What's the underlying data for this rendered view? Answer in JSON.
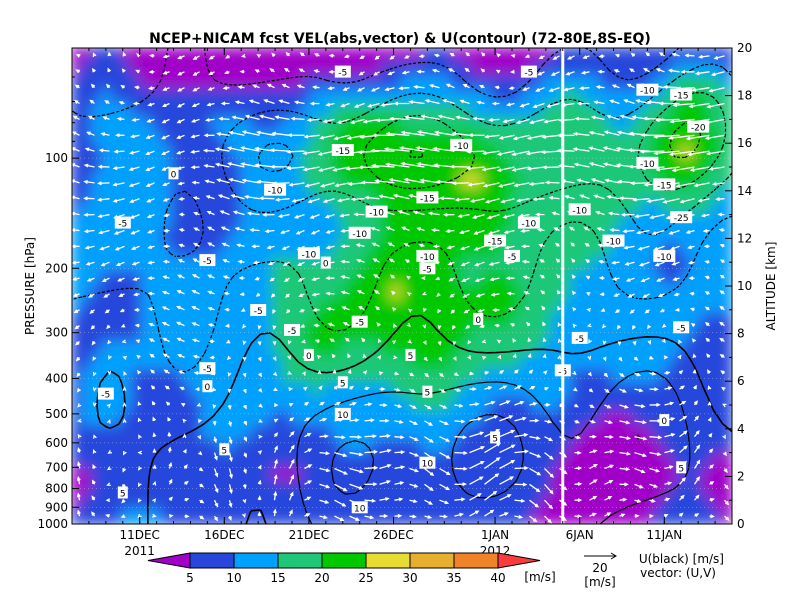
{
  "chart_data": {
    "type": "heatmap",
    "title": "NCEP+NICAM fcst VEL(abs,vector) & U(contour)  (72-80E,8S-EQ)",
    "ylabel_left": "PRESSURE [hPa]",
    "ylabel_right": "ALTITUDE [km]",
    "x_ticks": [
      "11DEC",
      "16DEC",
      "21DEC",
      "26DEC",
      "1JAN",
      "6JAN",
      "11JAN"
    ],
    "x_year_labels": [
      {
        "under": "11DEC",
        "text": "2011"
      },
      {
        "under": "1JAN",
        "text": "2012"
      }
    ],
    "x_range": [
      "2011-12-07",
      "2012-01-15"
    ],
    "forecast_start": "2012-01-05",
    "pressure_ticks": [
      100,
      200,
      300,
      400,
      500,
      600,
      700,
      800,
      900,
      1000
    ],
    "pressure_log_scale": true,
    "pressure_range": [
      1000,
      50
    ],
    "altitude_ticks": [
      0,
      2,
      4,
      6,
      8,
      10,
      12,
      14,
      16,
      18,
      20
    ],
    "colorbar": {
      "levels": [
        5,
        10,
        15,
        20,
        25,
        30,
        35,
        40
      ],
      "colors": [
        "#a000c8",
        "#2846dc",
        "#00a0ff",
        "#1ec878",
        "#00c800",
        "#e6dc32",
        "#e6af2d",
        "#f08228",
        "#fa3c3c",
        "#f00082"
      ],
      "unit": "[m/s]"
    },
    "vector_legend": {
      "value": "20",
      "unit": "[m/s]"
    },
    "legend_note": [
      "U(black) [m/s]",
      "vector: (U,V)"
    ],
    "contour_labels": [
      {
        "text": "-5",
        "date": "2011-12-10",
        "p": 150
      },
      {
        "text": "-5",
        "date": "2011-12-15",
        "p": 190
      },
      {
        "text": "-5",
        "date": "2011-12-18",
        "p": 260
      },
      {
        "text": "-5",
        "date": "2011-12-20",
        "p": 295
      },
      {
        "text": "-5",
        "date": "2011-12-15",
        "p": 375
      },
      {
        "text": "-5",
        "date": "2011-12-09",
        "p": 440
      },
      {
        "text": "-5",
        "date": "2011-12-24",
        "p": 280
      },
      {
        "text": "-5",
        "date": "2011-12-23",
        "p": 58
      },
      {
        "text": "-5",
        "date": "2011-12-30",
        "p": 92
      },
      {
        "text": "-5",
        "date": "2012-01-03",
        "p": 58
      },
      {
        "text": "-10",
        "date": "2011-12-30",
        "p": 92
      },
      {
        "text": "-10",
        "date": "2011-12-19",
        "p": 122
      },
      {
        "text": "-15",
        "date": "2011-12-23",
        "p": 95
      },
      {
        "text": "-10",
        "date": "2011-12-25",
        "p": 140
      },
      {
        "text": "-15",
        "date": "2011-12-28",
        "p": 128
      },
      {
        "text": "-10",
        "date": "2011-12-24",
        "p": 160
      },
      {
        "text": "-10",
        "date": "2011-12-21",
        "p": 182
      },
      {
        "text": "-10",
        "date": "2011-12-28",
        "p": 185
      },
      {
        "text": "-15",
        "date": "2012-01-01",
        "p": 168
      },
      {
        "text": "-10",
        "date": "2012-01-03",
        "p": 150
      },
      {
        "text": "-10",
        "date": "2012-01-06",
        "p": 138
      },
      {
        "text": "-10",
        "date": "2012-01-08",
        "p": 168
      },
      {
        "text": "-5",
        "date": "2012-01-02",
        "p": 185
      },
      {
        "text": "-5",
        "date": "2011-12-28",
        "p": 200
      },
      {
        "text": "-10",
        "date": "2012-01-10",
        "p": 65
      },
      {
        "text": "-15",
        "date": "2012-01-12",
        "p": 67
      },
      {
        "text": "-20",
        "date": "2012-01-13",
        "p": 82
      },
      {
        "text": "-10",
        "date": "2012-01-10",
        "p": 103
      },
      {
        "text": "-15",
        "date": "2012-01-11",
        "p": 118
      },
      {
        "text": "-25",
        "date": "2012-01-12",
        "p": 145
      },
      {
        "text": "-10",
        "date": "2012-01-11",
        "p": 185
      },
      {
        "text": "-5",
        "date": "2012-01-12",
        "p": 290
      },
      {
        "text": "-5",
        "date": "2012-01-06",
        "p": 310
      },
      {
        "text": "-5",
        "date": "2012-01-05",
        "p": 380
      },
      {
        "text": "0",
        "date": "2011-12-13",
        "p": 110
      },
      {
        "text": "0",
        "date": "2011-12-22",
        "p": 193
      },
      {
        "text": "0",
        "date": "2011-12-21",
        "p": 345
      },
      {
        "text": "0",
        "date": "2011-12-15",
        "p": 420
      },
      {
        "text": "0",
        "date": "2011-12-31",
        "p": 275
      },
      {
        "text": "0",
        "date": "2012-01-11",
        "p": 520
      },
      {
        "text": "5",
        "date": "2011-12-16",
        "p": 625
      },
      {
        "text": "5",
        "date": "2011-12-27",
        "p": 345
      },
      {
        "text": "5",
        "date": "2011-12-28",
        "p": 435
      },
      {
        "text": "5",
        "date": "2011-12-23",
        "p": 410
      },
      {
        "text": "5",
        "date": "2011-12-10",
        "p": 820
      },
      {
        "text": "5",
        "date": "2012-01-01",
        "p": 580
      },
      {
        "text": "5",
        "date": "2012-01-12",
        "p": 700
      },
      {
        "text": "10",
        "date": "2011-12-23",
        "p": 500
      },
      {
        "text": "10",
        "date": "2011-12-28",
        "p": 680
      },
      {
        "text": "10",
        "date": "2011-12-24",
        "p": 900
      }
    ]
  }
}
